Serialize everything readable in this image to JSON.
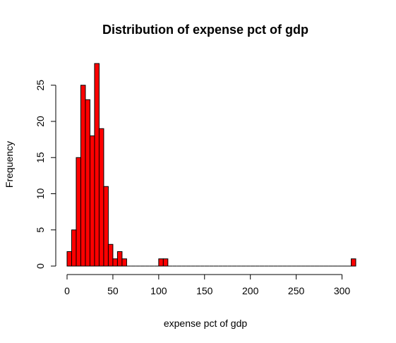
{
  "chart_data": {
    "type": "bar",
    "title": "Distribution of expense pct of gdp",
    "xlabel": "expense pct of gdp",
    "ylabel": "Frequency",
    "bin_width": 5,
    "x_start": 0,
    "values": [
      2,
      5,
      15,
      25,
      23,
      18,
      28,
      19,
      11,
      3,
      1,
      2,
      1,
      0,
      0,
      0,
      0,
      0,
      0,
      0,
      1,
      1,
      0,
      0,
      0,
      0,
      0,
      0,
      0,
      0,
      0,
      0,
      0,
      0,
      0,
      0,
      0,
      0,
      0,
      0,
      0,
      0,
      0,
      0,
      0,
      0,
      0,
      0,
      0,
      0,
      0,
      0,
      0,
      0,
      0,
      0,
      0,
      0,
      0,
      0,
      0,
      0,
      1
    ],
    "xlim": [
      0,
      315
    ],
    "ylim": [
      0,
      28
    ],
    "x_ticks": [
      0,
      50,
      100,
      150,
      200,
      250,
      300
    ],
    "y_ticks": [
      0,
      5,
      10,
      15,
      20,
      25
    ],
    "bar_color": "#ff0000",
    "grid": false,
    "legend": "none"
  }
}
